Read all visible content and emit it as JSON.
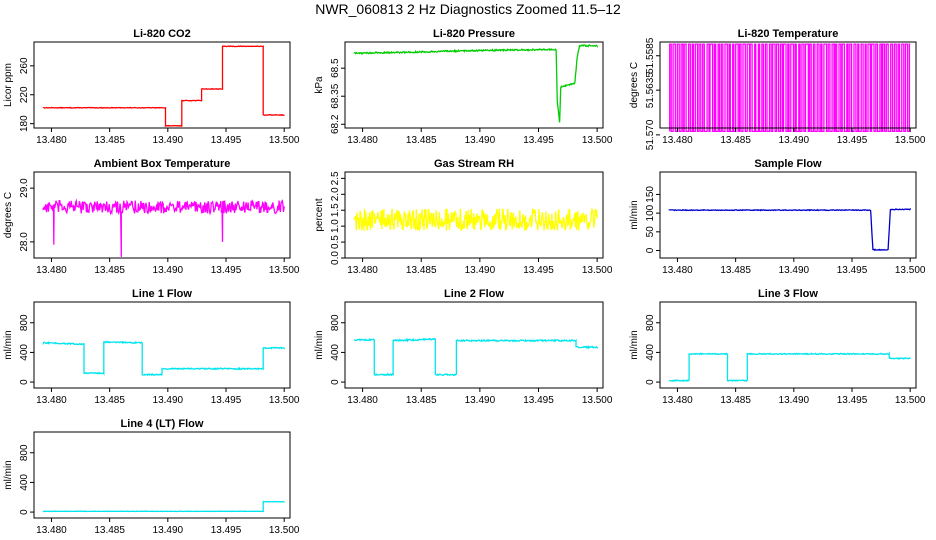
{
  "page_title": "NWR_060813  2 Hz Diagnostics Zoomed 11.5–12",
  "chart_data": [
    {
      "type": "line",
      "title": "Li-820 CO2",
      "ylabel": "Licor ppm",
      "color": "#ff0000",
      "xlim": [
        13.4785,
        13.5005
      ],
      "xticks": [
        13.48,
        13.485,
        13.49,
        13.495,
        13.5
      ],
      "xtick_labels": [
        "13.480",
        "13.485",
        "13.490",
        "13.495",
        "13.500"
      ],
      "ylim": [
        174,
        293
      ],
      "yticks": [
        180,
        220,
        260
      ],
      "ytick_labels": [
        "180",
        "220",
        "260"
      ],
      "noise": 0.4,
      "series": [
        {
          "name": "CO2",
          "x": [
            13.4793,
            13.4898,
            13.4898,
            13.4912,
            13.4912,
            13.4929,
            13.4929,
            13.4947,
            13.4947,
            13.4982,
            13.4982,
            13.5
          ],
          "y": [
            202,
            202,
            177,
            177,
            212,
            212,
            228,
            228,
            287,
            287,
            192,
            192
          ]
        }
      ]
    },
    {
      "type": "line",
      "title": "Li-820 Pressure",
      "ylabel": "kPa",
      "color": "#00cc00",
      "xlim": [
        13.4785,
        13.5005
      ],
      "xticks": [
        13.48,
        13.485,
        13.49,
        13.495,
        13.5
      ],
      "xtick_labels": [
        "13.480",
        "13.485",
        "13.490",
        "13.495",
        "13.500"
      ],
      "ylim": [
        68.18,
        68.64
      ],
      "yticks": [
        68.2,
        68.35,
        68.5
      ],
      "ytick_labels": [
        "68.2",
        "68.35",
        "68.5"
      ],
      "noise": 0.004,
      "series": [
        {
          "name": "Pressure",
          "x": [
            13.4793,
            13.4836,
            13.49,
            13.4965,
            13.4966,
            13.4968,
            13.4969,
            13.4981,
            13.4983,
            13.4985,
            13.5
          ],
          "y": [
            68.58,
            68.585,
            68.595,
            68.6,
            68.32,
            68.21,
            68.4,
            68.42,
            68.56,
            68.62,
            68.62
          ]
        }
      ]
    },
    {
      "type": "line",
      "title": "Li-820 Temperature",
      "ylabel": "degrees C",
      "color": "#ff00ff",
      "xlim": [
        13.4785,
        13.5005
      ],
      "xticks": [
        13.48,
        13.485,
        13.49,
        13.495,
        13.5
      ],
      "xtick_labels": [
        "13.480",
        "13.485",
        "13.490",
        "13.495",
        "13.500"
      ],
      "ylim": [
        51.569,
        51.5565
      ],
      "yticks": [
        51.57,
        51.5635,
        51.5585
      ],
      "ytick_labels": [
        "51.570",
        "51.5635",
        "51.5585"
      ],
      "levels": [
        51.5695,
        51.5568
      ],
      "switches": 130,
      "series": [
        {
          "name": "Temperature",
          "x": [
            13.4793,
            13.5
          ],
          "y": [
            51.5695,
            51.5568
          ]
        }
      ]
    },
    {
      "type": "line",
      "title": "Ambient Box Temperature",
      "ylabel": "degrees C",
      "color": "#ff00ff",
      "xlim": [
        13.4785,
        13.5005
      ],
      "xticks": [
        13.48,
        13.485,
        13.49,
        13.495,
        13.5
      ],
      "xtick_labels": [
        "13.480",
        "13.485",
        "13.490",
        "13.495",
        "13.500"
      ],
      "ylim": [
        27.7,
        29.3
      ],
      "yticks": [
        28.0,
        29.0
      ],
      "ytick_labels": [
        "28.0",
        "29.0"
      ],
      "noise": 0.12,
      "spikes": [
        {
          "x": 13.4802,
          "y": 27.95
        },
        {
          "x": 13.486,
          "y": 27.72
        },
        {
          "x": 13.4947,
          "y": 28.0
        }
      ],
      "series": [
        {
          "name": "Box Temperature",
          "x": [
            13.4793,
            13.5
          ],
          "y": [
            28.65,
            28.65
          ]
        }
      ]
    },
    {
      "type": "line",
      "title": "Gas Stream RH",
      "ylabel": "percent",
      "color": "#ffff00",
      "xlim": [
        13.4785,
        13.5005
      ],
      "xticks": [
        13.48,
        13.485,
        13.49,
        13.495,
        13.5
      ],
      "xtick_labels": [
        "13.480",
        "13.485",
        "13.490",
        "13.495",
        "13.500"
      ],
      "ylim": [
        0,
        2.7
      ],
      "yticks": [
        0.0,
        0.5,
        1.0,
        1.5,
        2.0,
        2.5
      ],
      "ytick_labels": [
        "0.0",
        "0.5",
        "1.0",
        "1.5",
        "2.0",
        "2.5"
      ],
      "noise": 0.35,
      "series": [
        {
          "name": "RH",
          "x": [
            13.4793,
            13.5
          ],
          "y": [
            1.2,
            1.2
          ]
        }
      ]
    },
    {
      "type": "line",
      "title": "Sample Flow",
      "ylabel": "ml/min",
      "color": "#0000cc",
      "xlim": [
        13.4785,
        13.5005
      ],
      "xticks": [
        13.48,
        13.485,
        13.49,
        13.495,
        13.5
      ],
      "xtick_labels": [
        "13.480",
        "13.485",
        "13.490",
        "13.495",
        "13.500"
      ],
      "ylim": [
        -20,
        210
      ],
      "yticks": [
        0,
        50,
        100,
        150
      ],
      "ytick_labels": [
        "0",
        "50",
        "100",
        "150"
      ],
      "noise": 1.0,
      "series": [
        {
          "name": "Sample Flow",
          "x": [
            13.4793,
            13.4966,
            13.4968,
            13.4981,
            13.4983,
            13.5
          ],
          "y": [
            108,
            108,
            2,
            2,
            110,
            110
          ]
        }
      ]
    },
    {
      "type": "line",
      "title": "Line 1 Flow",
      "ylabel": "ml/min",
      "color": "#00e5ee",
      "xlim": [
        13.4785,
        13.5005
      ],
      "xticks": [
        13.48,
        13.485,
        13.49,
        13.495,
        13.5
      ],
      "xtick_labels": [
        "13.480",
        "13.485",
        "13.490",
        "13.495",
        "13.500"
      ],
      "ylim": [
        -80,
        1080
      ],
      "yticks": [
        0,
        400,
        800
      ],
      "ytick_labels": [
        "0",
        "400",
        "800"
      ],
      "noise": 8,
      "series": [
        {
          "name": "Line 1",
          "x": [
            13.4793,
            13.4828,
            13.4828,
            13.4845,
            13.4845,
            13.4878,
            13.4878,
            13.4895,
            13.4895,
            13.4982,
            13.4982,
            13.5
          ],
          "y": [
            530,
            510,
            120,
            120,
            540,
            530,
            100,
            100,
            180,
            180,
            460,
            460
          ]
        }
      ]
    },
    {
      "type": "line",
      "title": "Line 2 Flow",
      "ylabel": "ml/min",
      "color": "#00e5ee",
      "xlim": [
        13.4785,
        13.5005
      ],
      "xticks": [
        13.48,
        13.485,
        13.49,
        13.495,
        13.5
      ],
      "xtick_labels": [
        "13.480",
        "13.485",
        "13.490",
        "13.495",
        "13.500"
      ],
      "ylim": [
        -80,
        1080
      ],
      "yticks": [
        0,
        400,
        800
      ],
      "ytick_labels": [
        "0",
        "400",
        "800"
      ],
      "noise": 10,
      "series": [
        {
          "name": "Line 2",
          "x": [
            13.4793,
            13.481,
            13.481,
            13.4826,
            13.4826,
            13.4862,
            13.4862,
            13.488,
            13.488,
            13.4982,
            13.4982,
            13.5
          ],
          "y": [
            570,
            570,
            100,
            100,
            560,
            580,
            100,
            100,
            560,
            560,
            470,
            470
          ]
        }
      ]
    },
    {
      "type": "line",
      "title": "Line 3 Flow",
      "ylabel": "ml/min",
      "color": "#00e5ee",
      "xlim": [
        13.4785,
        13.5005
      ],
      "xticks": [
        13.48,
        13.485,
        13.49,
        13.495,
        13.5
      ],
      "xtick_labels": [
        "13.480",
        "13.485",
        "13.490",
        "13.495",
        "13.500"
      ],
      "ylim": [
        -80,
        1080
      ],
      "yticks": [
        0,
        400,
        800
      ],
      "ytick_labels": [
        "0",
        "400",
        "800"
      ],
      "noise": 7,
      "series": [
        {
          "name": "Line 3",
          "x": [
            13.4793,
            13.481,
            13.481,
            13.4843,
            13.4843,
            13.486,
            13.486,
            13.4982,
            13.4982,
            13.5
          ],
          "y": [
            20,
            20,
            380,
            380,
            20,
            20,
            380,
            380,
            320,
            320
          ]
        }
      ]
    },
    {
      "type": "line",
      "title": "Line 4 (LT) Flow",
      "ylabel": "ml/min",
      "color": "#00e5ee",
      "xlim": [
        13.4785,
        13.5005
      ],
      "xticks": [
        13.48,
        13.485,
        13.49,
        13.495,
        13.5
      ],
      "xtick_labels": [
        "13.480",
        "13.485",
        "13.490",
        "13.495",
        "13.500"
      ],
      "ylim": [
        -80,
        1080
      ],
      "yticks": [
        0,
        400,
        800
      ],
      "ytick_labels": [
        "0",
        "400",
        "800"
      ],
      "noise": 2,
      "series": [
        {
          "name": "Line 4 (LT)",
          "x": [
            13.4793,
            13.4982,
            13.4982,
            13.5
          ],
          "y": [
            10,
            10,
            140,
            140
          ]
        }
      ]
    }
  ]
}
